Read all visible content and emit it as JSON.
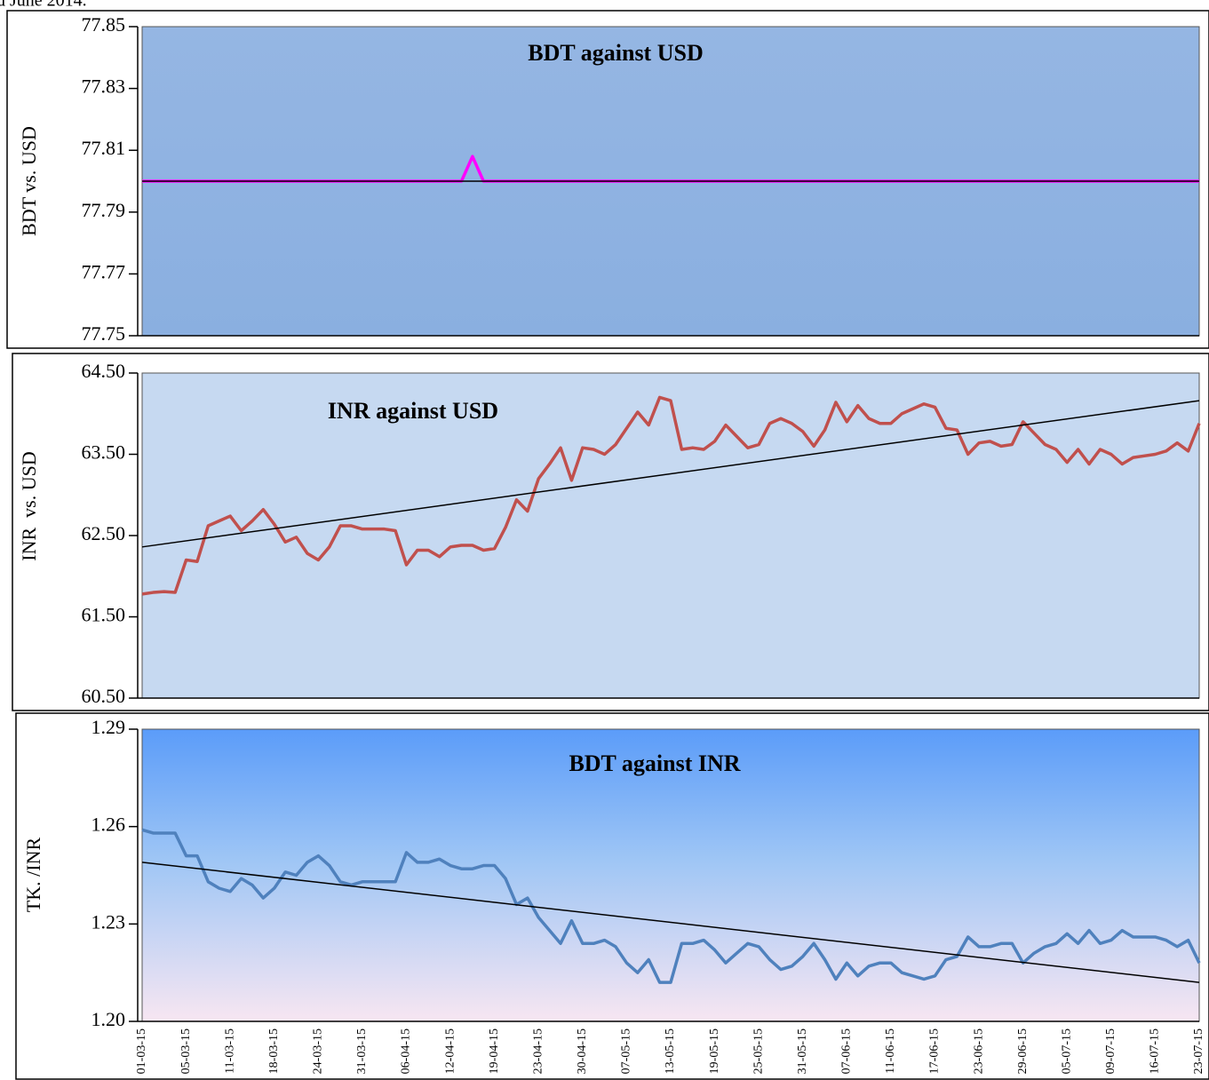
{
  "caption": "d June 2014.",
  "chart_data": [
    {
      "type": "line",
      "title": "BDT against USD",
      "y_label": "BDT vs. USD",
      "color": "#ff00ff",
      "trend_color": "#000000",
      "values": [
        77.8,
        77.8,
        77.8,
        77.8,
        77.8,
        77.8,
        77.8,
        77.8,
        77.8,
        77.8,
        77.8,
        77.8,
        77.8,
        77.8,
        77.8,
        77.8,
        77.8,
        77.8,
        77.8,
        77.8,
        77.8,
        77.8,
        77.8,
        77.8,
        77.8,
        77.8,
        77.8,
        77.8,
        77.8,
        77.8,
        77.808,
        77.8,
        77.8,
        77.8,
        77.8,
        77.8,
        77.8,
        77.8,
        77.8,
        77.8,
        77.8,
        77.8,
        77.8,
        77.8,
        77.8,
        77.8,
        77.8,
        77.8,
        77.8,
        77.8,
        77.8,
        77.8,
        77.8,
        77.8,
        77.8,
        77.8,
        77.8,
        77.8,
        77.8,
        77.8,
        77.8,
        77.8,
        77.8,
        77.8,
        77.8,
        77.8,
        77.8,
        77.8,
        77.8,
        77.8,
        77.8,
        77.8,
        77.8,
        77.8,
        77.8,
        77.8,
        77.8,
        77.8,
        77.8,
        77.8,
        77.8,
        77.8,
        77.8,
        77.8,
        77.8,
        77.8,
        77.8,
        77.8,
        77.8,
        77.8,
        77.8,
        77.8,
        77.8,
        77.8,
        77.8,
        77.8,
        77.8
      ],
      "trendline": [
        77.8,
        77.8
      ],
      "ylim": [
        77.75,
        77.85
      ],
      "yticks": [
        77.75,
        77.77,
        77.79,
        77.81,
        77.83,
        77.85
      ]
    },
    {
      "type": "line",
      "title": "INR against USD",
      "y_label": "INR  vs. USD",
      "color": "#c0504d",
      "trend_color": "#000000",
      "values": [
        61.78,
        61.8,
        61.81,
        61.8,
        62.2,
        62.18,
        62.62,
        62.68,
        62.74,
        62.56,
        62.68,
        62.82,
        62.64,
        62.42,
        62.48,
        62.28,
        62.2,
        62.36,
        62.62,
        62.62,
        62.58,
        62.58,
        62.58,
        62.56,
        62.14,
        62.32,
        62.32,
        62.24,
        62.36,
        62.38,
        62.38,
        62.32,
        62.34,
        62.6,
        62.94,
        62.8,
        63.2,
        63.38,
        63.58,
        63.18,
        63.58,
        63.56,
        63.5,
        63.62,
        63.82,
        64.02,
        63.86,
        64.2,
        64.16,
        63.56,
        63.58,
        63.56,
        63.66,
        63.86,
        63.72,
        63.58,
        63.62,
        63.88,
        63.94,
        63.88,
        63.78,
        63.6,
        63.8,
        64.14,
        63.9,
        64.1,
        63.94,
        63.88,
        63.88,
        64.0,
        64.06,
        64.12,
        64.08,
        63.82,
        63.8,
        63.5,
        63.64,
        63.66,
        63.6,
        63.62,
        63.9,
        63.76,
        63.62,
        63.56,
        63.4,
        63.56,
        63.38,
        63.56,
        63.5,
        63.38,
        63.46,
        63.48,
        63.5,
        63.54,
        63.64,
        63.54,
        63.88
      ],
      "trendline": [
        62.36,
        64.16
      ],
      "ylim": [
        60.5,
        64.5
      ],
      "yticks": [
        {
          "value": 60.5,
          "label": "60.50"
        },
        {
          "value": 61.5,
          "label": "61.50"
        },
        {
          "value": 62.5,
          "label": "62.50"
        },
        {
          "value": 63.5,
          "label": "63.50"
        },
        {
          "value": 64.5,
          "label": "64.50"
        }
      ]
    },
    {
      "type": "line",
      "title": "BDT against INR",
      "y_label": "TK. /INR",
      "color": "#4f81bd",
      "trend_color": "#000000",
      "categories": [
        "01-03-15",
        null,
        null,
        null,
        "05-03-15",
        null,
        null,
        null,
        "11-03-15",
        null,
        null,
        null,
        "18-03-15",
        null,
        null,
        null,
        "24-03-15",
        null,
        null,
        null,
        "31-03-15",
        null,
        null,
        null,
        "06-04-15",
        null,
        null,
        null,
        "12-04-15",
        null,
        null,
        null,
        "19-04-15",
        null,
        null,
        null,
        "23-04-15",
        null,
        null,
        null,
        "30-04-15",
        null,
        null,
        null,
        "07-05-15",
        null,
        null,
        null,
        "13-05-15",
        null,
        null,
        null,
        "19-05-15",
        null,
        null,
        null,
        "25-05-15",
        null,
        null,
        null,
        "31-05-15",
        null,
        null,
        null,
        "07-06-15",
        null,
        null,
        null,
        "11-06-15",
        null,
        null,
        null,
        "17-06-15",
        null,
        null,
        null,
        "23-06-15",
        null,
        null,
        null,
        "29-06-15",
        null,
        null,
        null,
        "05-07-15",
        null,
        null,
        null,
        "09-07-15",
        null,
        null,
        null,
        "16-07-15",
        null,
        null,
        null,
        "23-07-15"
      ],
      "values": [
        1.259,
        1.258,
        1.258,
        1.258,
        1.251,
        1.251,
        1.243,
        1.241,
        1.24,
        1.244,
        1.242,
        1.238,
        1.241,
        1.246,
        1.245,
        1.249,
        1.251,
        1.248,
        1.243,
        1.242,
        1.243,
        1.243,
        1.243,
        1.243,
        1.252,
        1.249,
        1.249,
        1.25,
        1.248,
        1.247,
        1.247,
        1.248,
        1.248,
        1.244,
        1.236,
        1.238,
        1.232,
        1.228,
        1.224,
        1.231,
        1.224,
        1.224,
        1.225,
        1.223,
        1.218,
        1.215,
        1.219,
        1.212,
        1.212,
        1.224,
        1.224,
        1.225,
        1.222,
        1.218,
        1.221,
        1.224,
        1.223,
        1.219,
        1.216,
        1.217,
        1.22,
        1.224,
        1.219,
        1.213,
        1.218,
        1.214,
        1.217,
        1.218,
        1.218,
        1.215,
        1.214,
        1.213,
        1.214,
        1.219,
        1.22,
        1.226,
        1.223,
        1.223,
        1.224,
        1.224,
        1.218,
        1.221,
        1.223,
        1.224,
        1.227,
        1.224,
        1.228,
        1.224,
        1.225,
        1.228,
        1.226,
        1.226,
        1.226,
        1.225,
        1.223,
        1.225,
        1.218
      ],
      "trendline": [
        1.249,
        1.212
      ],
      "ylim": [
        1.2,
        1.29
      ],
      "yticks": [
        {
          "value": 1.2,
          "label": "1.20"
        },
        1.23,
        1.26,
        1.29
      ]
    }
  ]
}
